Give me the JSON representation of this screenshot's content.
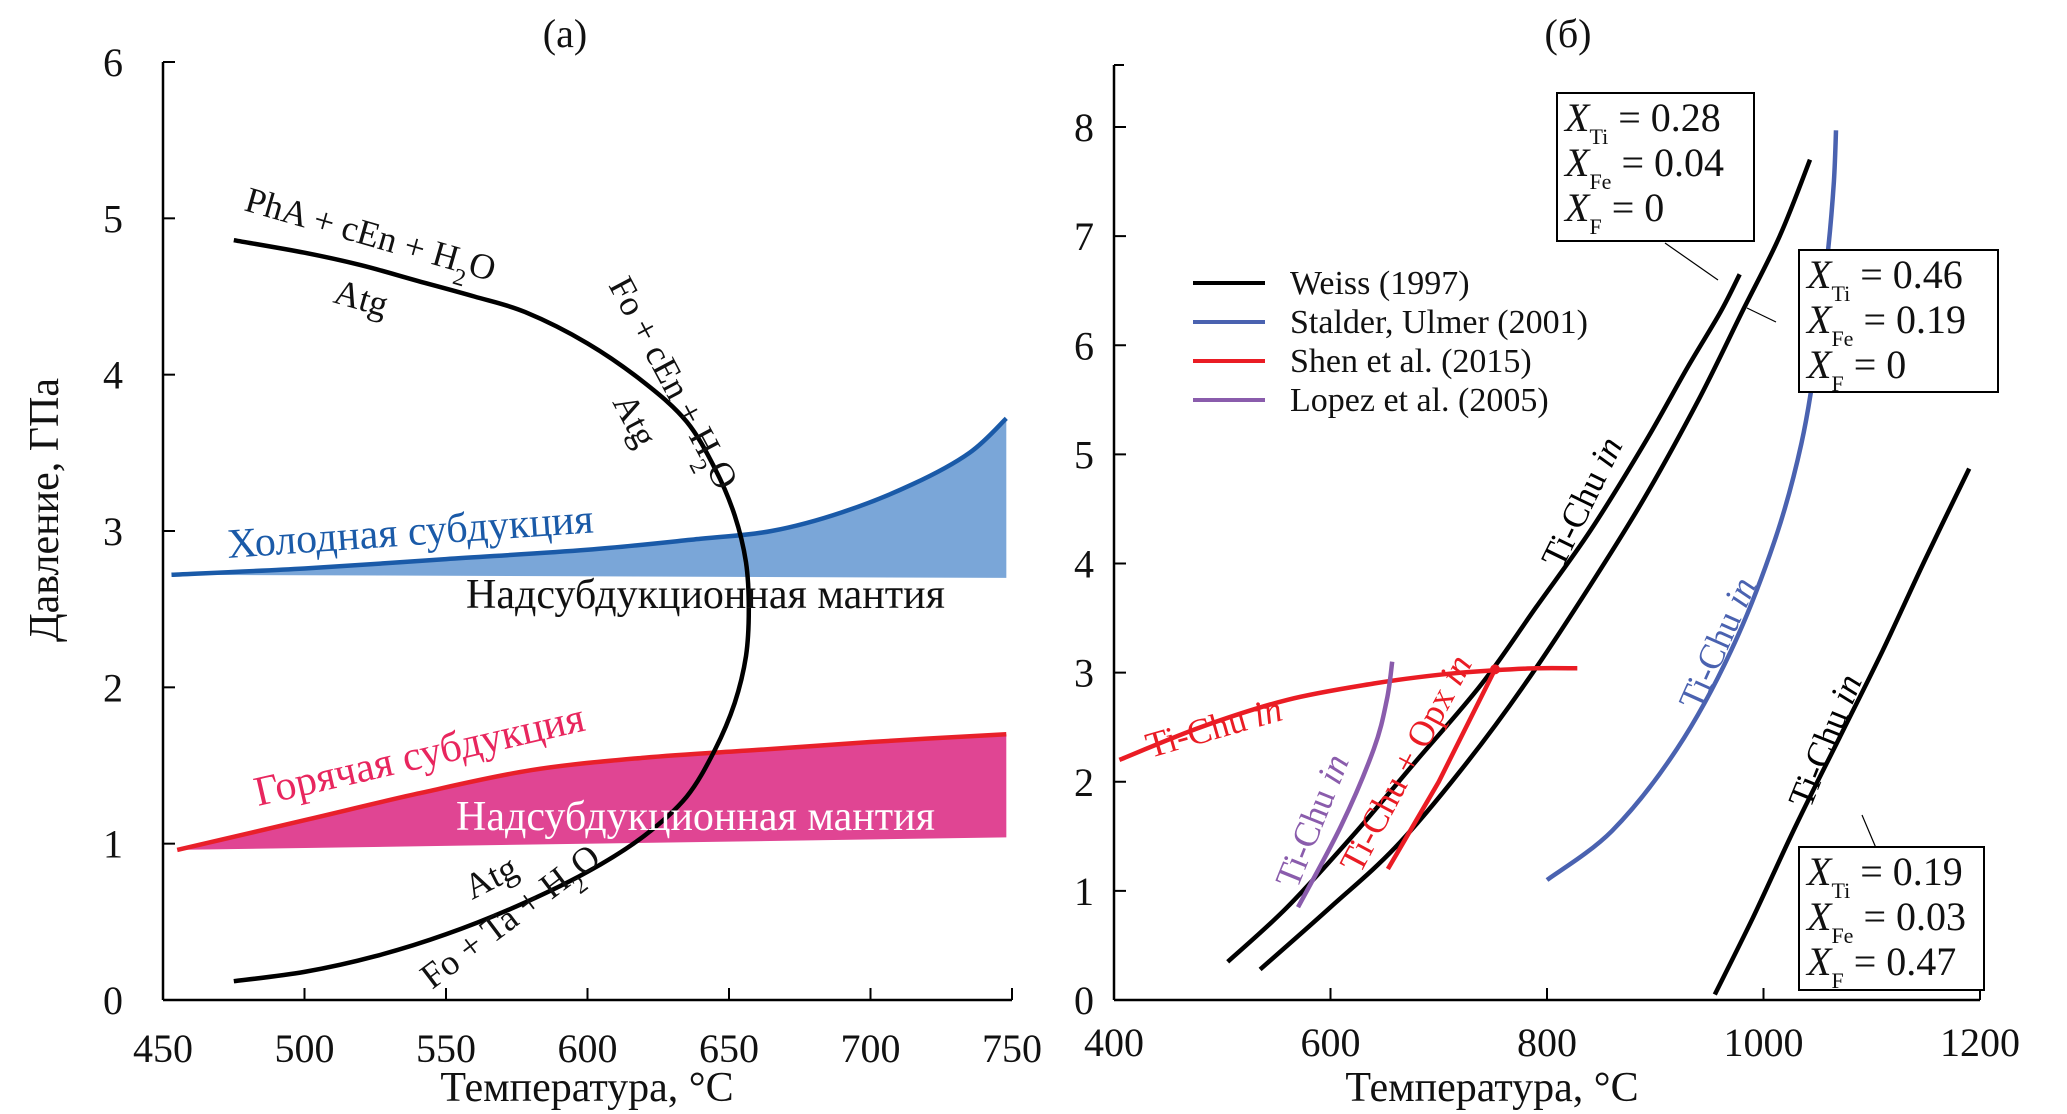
{
  "chart_data": [
    {
      "panel": "a",
      "type": "line",
      "title": "(a)",
      "xlabel": "Температура, °C",
      "ylabel": "Давление, ГПа",
      "xlim": [
        450,
        750
      ],
      "ylim": [
        0,
        6
      ],
      "xticks": [
        450,
        500,
        550,
        600,
        650,
        700,
        750
      ],
      "yticks": [
        0,
        1,
        2,
        3,
        4,
        5,
        6
      ],
      "grid": false,
      "series": [
        {
          "name": "Atg reaction boundary",
          "color": "#000000",
          "x": [
            475,
            500,
            525,
            550,
            575,
            600,
            620,
            635,
            645,
            652,
            656,
            657,
            656,
            652,
            645,
            635,
            620,
            600,
            578,
            560,
            540,
            520,
            500,
            475
          ],
          "y": [
            0.12,
            0.18,
            0.28,
            0.42,
            0.6,
            0.82,
            1.05,
            1.3,
            1.6,
            1.9,
            2.2,
            2.5,
            2.8,
            3.1,
            3.4,
            3.7,
            3.95,
            4.2,
            4.4,
            4.5,
            4.6,
            4.7,
            4.78,
            4.86
          ]
        },
        {
          "name": "Холодная субдукция (upper boundary)",
          "color": "#1a5aa8",
          "fill": "#7aa6d8",
          "x": [
            453,
            500,
            550,
            600,
            640,
            665,
            690,
            715,
            735,
            748
          ],
          "y": [
            2.72,
            2.76,
            2.82,
            2.88,
            2.95,
            3.0,
            3.12,
            3.3,
            3.5,
            3.72
          ]
        },
        {
          "name": "Холодная субдукция (lower boundary)",
          "color": "#7aa6d8",
          "x": [
            453,
            748
          ],
          "y": [
            2.72,
            2.7
          ]
        },
        {
          "name": "Горячая субдукция (upper boundary)",
          "color": "#e8202a",
          "fill": "#e04593",
          "x": [
            455,
            500,
            540,
            580,
            620,
            660,
            700,
            748
          ],
          "y": [
            0.96,
            1.15,
            1.32,
            1.47,
            1.55,
            1.6,
            1.65,
            1.7
          ]
        },
        {
          "name": "Горячая субдукция (lower boundary)",
          "color": "#e04593",
          "x": [
            455,
            748
          ],
          "y": [
            0.96,
            1.04
          ]
        }
      ],
      "annotations": [
        {
          "text": "PhA + cEn + H2O",
          "x": 530,
          "y": 4.75
        },
        {
          "text": "Atg",
          "x": 518,
          "y": 4.48
        },
        {
          "text": "Fo + cEn + H2O",
          "x": 638,
          "y": 3.8
        },
        {
          "text": "Atg",
          "x": 612,
          "y": 3.7
        },
        {
          "text": "Холодная субдукция",
          "x": 540,
          "y": 2.92
        },
        {
          "text": "Надсубдукционная мантия",
          "x": 650,
          "y": 2.52
        },
        {
          "text": "Горячая субдукция",
          "x": 535,
          "y": 1.45
        },
        {
          "text": "Надсубдукционная мантия",
          "x": 650,
          "y": 1.1
        },
        {
          "text": "Atg",
          "x": 565,
          "y": 0.7
        },
        {
          "text": "Fo + Ta + H2O",
          "x": 575,
          "y": 0.4
        }
      ]
    },
    {
      "panel": "б",
      "type": "line",
      "title": "(б)",
      "xlabel": "Температура, °C",
      "ylabel": "",
      "xlim": [
        400,
        1200
      ],
      "ylim": [
        0,
        8.5
      ],
      "xticks": [
        400,
        600,
        800,
        1000,
        1200
      ],
      "yticks": [
        0,
        1,
        2,
        3,
        4,
        5,
        6,
        7,
        8
      ],
      "grid": false,
      "legend": {
        "position": "upper-left",
        "entries": [
          {
            "label": "Weiss (1997)",
            "color": "#000000"
          },
          {
            "label": "Stalder, Ulmer (2001)",
            "color": "#4a62b0"
          },
          {
            "label": "Shen et al. (2015)",
            "color": "#ea1c24"
          },
          {
            "label": "Lopez et al. (2005)",
            "color": "#8a5cac"
          }
        ]
      },
      "series": [
        {
          "name": "Weiss (1997) XTi=0.28",
          "color": "#000000",
          "x": [
            505,
            560,
            620,
            680,
            740,
            790,
            840,
            890,
            930,
            960,
            978
          ],
          "y": [
            0.35,
            0.85,
            1.5,
            2.2,
            2.9,
            3.6,
            4.3,
            5.1,
            5.8,
            6.3,
            6.65
          ]
        },
        {
          "name": "Weiss (1997) XTi=0.46",
          "color": "#000000",
          "x": [
            535,
            600,
            660,
            720,
            780,
            840,
            890,
            940,
            980,
            1015,
            1043
          ],
          "y": [
            0.28,
            0.85,
            1.4,
            2.1,
            2.9,
            3.8,
            4.6,
            5.5,
            6.3,
            7.0,
            7.7
          ]
        },
        {
          "name": "Weiss (1997) XTi=0.19",
          "color": "#000000",
          "x": [
            955,
            990,
            1030,
            1070,
            1110,
            1150,
            1190
          ],
          "y": [
            0.05,
            0.75,
            1.6,
            2.4,
            3.2,
            4.05,
            4.87
          ]
        },
        {
          "name": "Stalder, Ulmer (2001)",
          "color": "#4a62b0",
          "x": [
            800,
            860,
            920,
            970,
            1010,
            1035,
            1050,
            1060,
            1065,
            1067
          ],
          "y": [
            1.1,
            1.55,
            2.3,
            3.2,
            4.2,
            5.1,
            6.0,
            6.9,
            7.5,
            7.97
          ]
        },
        {
          "name": "Shen et al. (2015) Ti-Chu in",
          "color": "#ea1c24",
          "x": [
            405,
            480,
            560,
            640,
            700,
            750,
            790,
            828
          ],
          "y": [
            2.2,
            2.5,
            2.75,
            2.9,
            2.98,
            3.02,
            3.04,
            3.04
          ]
        },
        {
          "name": "Shen et al. (2015) Ti-Chu + Opx in",
          "color": "#ea1c24",
          "x": [
            653,
            700,
            752
          ],
          "y": [
            1.2,
            2.0,
            3.03
          ]
        },
        {
          "name": "Lopez et al. (2005)",
          "color": "#8a5cac",
          "x": [
            570,
            610,
            640,
            652,
            657
          ],
          "y": [
            0.85,
            1.6,
            2.3,
            2.75,
            3.1
          ]
        }
      ],
      "points": [
        {
          "name": "invariant point",
          "x": 752,
          "y": 3.03,
          "color": "#ea1c24"
        }
      ],
      "curve_labels": [
        {
          "text": "Ti-Chu",
          "italic": "in",
          "color": "#ea1c24",
          "x": 470,
          "y": 2.72
        },
        {
          "text": "Ti-Chu",
          "italic": "in",
          "color": "#8a5cac",
          "x": 610,
          "y": 1.55
        },
        {
          "text": "Ti-Chu + Opx",
          "italic": "in",
          "color": "#ea1c24",
          "x": 680,
          "y": 1.95
        },
        {
          "text": "Ti-Chu",
          "italic": "in",
          "color": "#000000",
          "x": 890,
          "y": 4.55
        },
        {
          "text": "Ti-Chu",
          "italic": "in",
          "color": "#4a62b0",
          "x": 1000,
          "y": 3.2
        },
        {
          "text": "Ti-Chu",
          "italic": "in",
          "color": "#000000",
          "x": 1080,
          "y": 2.6
        }
      ],
      "boxes": [
        {
          "id": "box1",
          "lines": [
            {
              "sub": "Ti",
              "value": "0.28"
            },
            {
              "sub": "Fe",
              "value": "0.04"
            },
            {
              "sub": "F",
              "value": "0"
            }
          ]
        },
        {
          "id": "box2",
          "lines": [
            {
              "sub": "Ti",
              "value": "0.46"
            },
            {
              "sub": "Fe",
              "value": "0.19"
            },
            {
              "sub": "F",
              "value": "0"
            }
          ]
        },
        {
          "id": "box3",
          "lines": [
            {
              "sub": "Ti",
              "value": "0.19"
            },
            {
              "sub": "Fe",
              "value": "0.03"
            },
            {
              "sub": "F",
              "value": "0.47"
            }
          ]
        }
      ]
    }
  ]
}
